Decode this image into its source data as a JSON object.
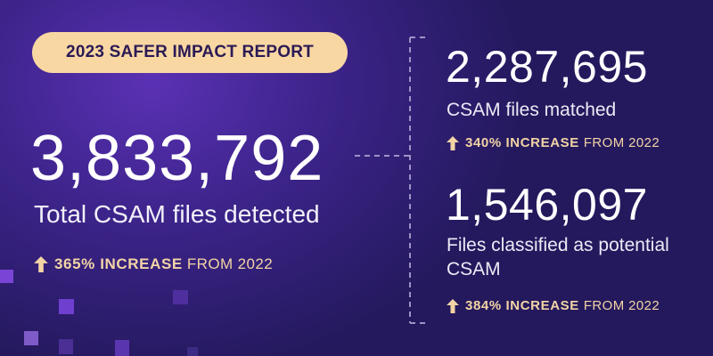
{
  "header": {
    "badge_label": "2023 SAFER IMPACT REPORT"
  },
  "main_stat": {
    "value": "3,833,792",
    "label": "Total CSAM files detected",
    "increase_percent": "365% INCREASE",
    "increase_suffix": "FROM 2022"
  },
  "stats": [
    {
      "value": "2,287,695",
      "label": "CSAM files matched",
      "increase_percent": "340% INCREASE",
      "increase_suffix": "FROM 2022"
    },
    {
      "value": "1,546,097",
      "label": "Files classified as potential CSAM",
      "increase_percent": "384% INCREASE",
      "increase_suffix": "FROM 2022"
    }
  ],
  "colors": {
    "badge_background": "#f8d7a3",
    "badge_text": "#2b1a55",
    "accent": "#f3d4a5",
    "background_dark": "#24195d",
    "background_light": "#5a31b4"
  },
  "icons": {
    "increase": "arrow-up-icon"
  }
}
